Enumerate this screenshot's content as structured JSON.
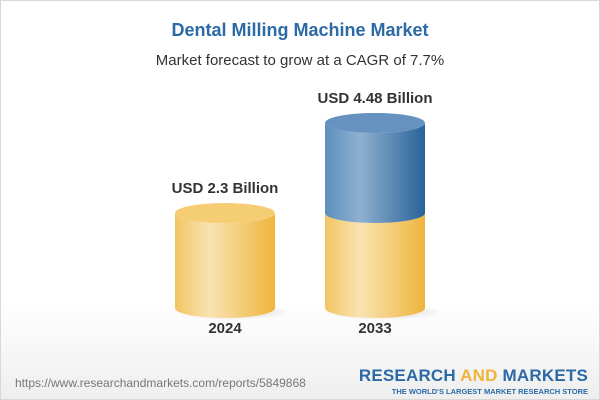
{
  "title": "Dental Milling Machine Market",
  "subtitle": "Market forecast to grow at a CAGR of 7.7%",
  "chart_data": {
    "type": "bar",
    "style": "3d-cylinder",
    "categories": [
      "2024",
      "2033"
    ],
    "values": [
      2.3,
      4.48
    ],
    "data_labels": [
      "USD 2.3 Billion",
      "USD 4.48 Billion"
    ],
    "unit": "USD Billion",
    "colors": {
      "base": "#f3c55e",
      "growth": "#4a80b3"
    },
    "grid": false
  },
  "footer": {
    "url": "https://www.researchandmarkets.com/reports/5849868",
    "logo_part1": "RESEARCH ",
    "logo_part2": "AND",
    "logo_part3": " MARKETS",
    "tagline": "THE WORLD'S LARGEST MARKET RESEARCH STORE"
  }
}
